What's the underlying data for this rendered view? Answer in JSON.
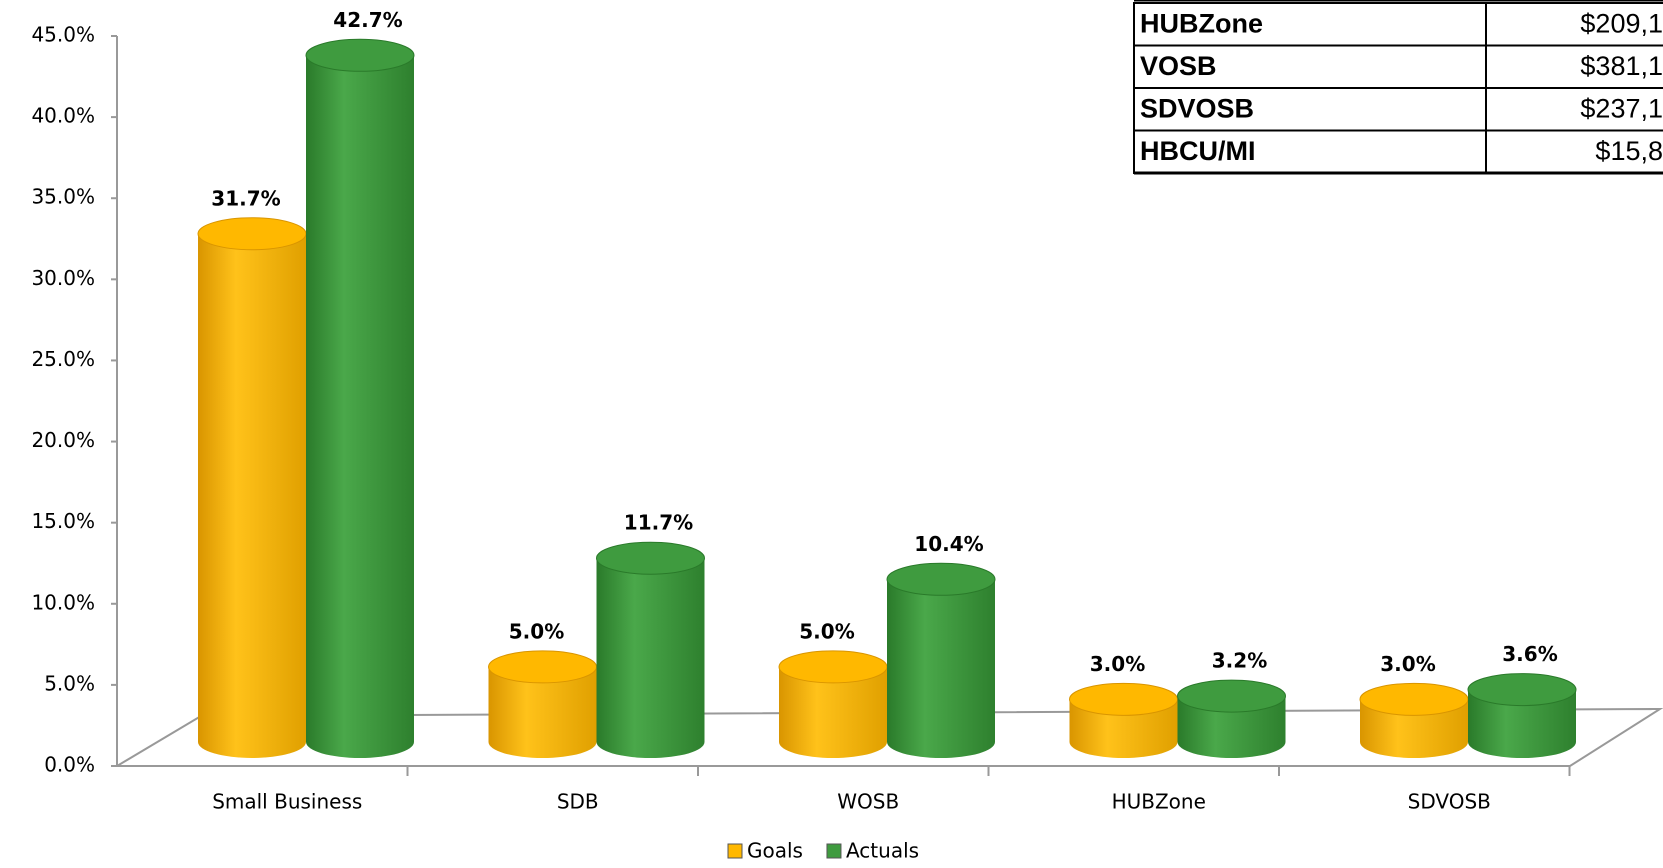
{
  "chart_data": {
    "type": "bar3d",
    "categories": [
      "Small Business",
      "SDB",
      "WOSB",
      "HUBZone",
      "SDVOSB"
    ],
    "series": [
      {
        "name": "Goals",
        "color": "#ffb800",
        "values": [
          31.7,
          5.0,
          5.0,
          3.0,
          3.0
        ],
        "value_labels": [
          "31.7%",
          "5.0%",
          "5.0%",
          "3.0%",
          "3.0%"
        ]
      },
      {
        "name": "Actuals",
        "color": "#3f9b3f",
        "values": [
          42.7,
          11.7,
          10.4,
          3.2,
          3.6
        ],
        "value_labels": [
          "42.7%",
          "11.7%",
          "10.4%",
          "3.2%",
          "3.6%"
        ]
      }
    ],
    "ylim": [
      0,
      45
    ],
    "yticks": [
      {
        "value": 0,
        "label": "0.0%"
      },
      {
        "value": 5,
        "label": "5.0%"
      },
      {
        "value": 10,
        "label": "10.0%"
      },
      {
        "value": 15,
        "label": "15.0%"
      },
      {
        "value": 20,
        "label": "20.0%"
      },
      {
        "value": 25,
        "label": "25.0%"
      },
      {
        "value": 30,
        "label": "30.0%"
      },
      {
        "value": 35,
        "label": "35.0%"
      },
      {
        "value": 40,
        "label": "40.0%"
      },
      {
        "value": 45,
        "label": "45.0%"
      }
    ],
    "legend": "bottom"
  },
  "table": {
    "rows": [
      [
        "HUBZone",
        "$209,1"
      ],
      [
        "VOSB",
        "$381,1"
      ],
      [
        "SDVOSB",
        "$237,1"
      ],
      [
        "HBCU/MI",
        "$15,8"
      ]
    ]
  }
}
